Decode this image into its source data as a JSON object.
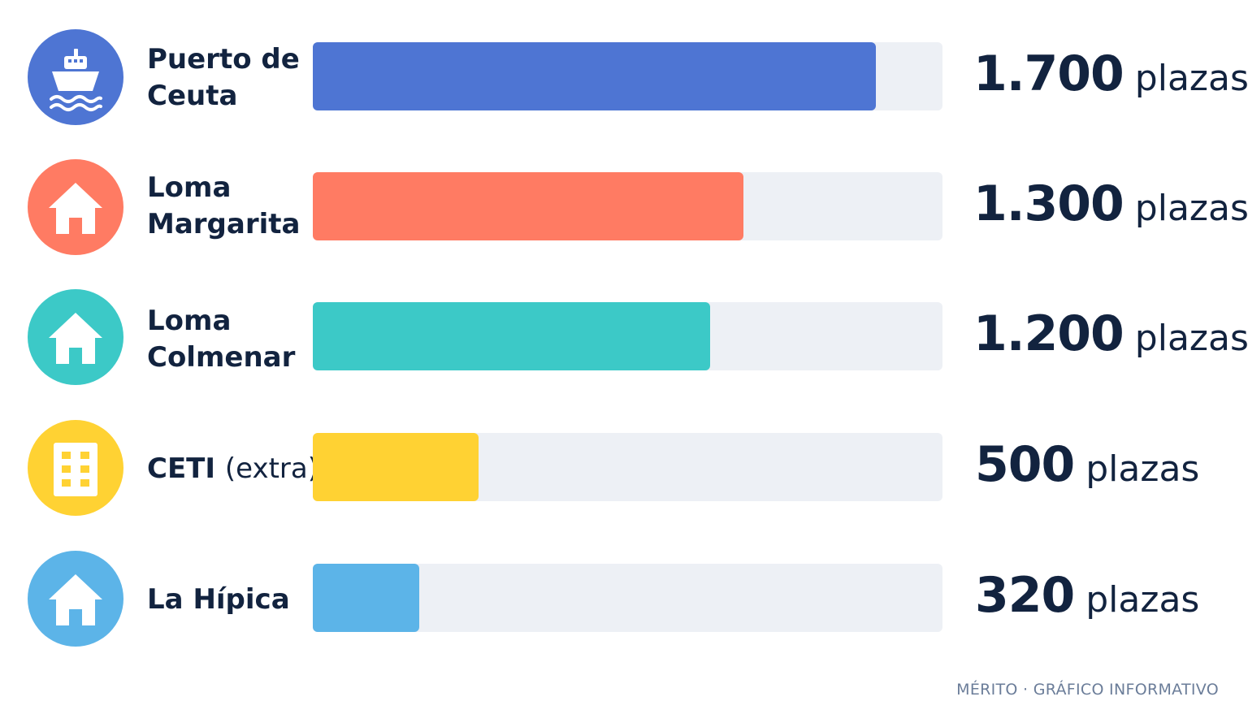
{
  "chart_data": {
    "type": "bar",
    "orientation": "horizontal",
    "unit": "plazas",
    "xlim": [
      0,
      1900
    ],
    "grid": false,
    "legend": "none",
    "categories": [
      "Puerto de Ceuta",
      "Loma Margarita",
      "Loma Colmenar",
      "CETI (extra)",
      "La Hípica"
    ],
    "values": [
      1700,
      1300,
      1200,
      500,
      320
    ],
    "value_labels": [
      "1.700",
      "1.300",
      "1.200",
      "500",
      "320"
    ],
    "colors": [
      "#4e75d3",
      "#ff7b63",
      "#3cc9c7",
      "#ffd233",
      "#5cb4e8"
    ],
    "icons": [
      "ship-icon",
      "house-icon",
      "house-icon",
      "building-icon",
      "house-icon"
    ]
  },
  "footer": {
    "credit": "MÉRITO · GRÁFICO INFORMATIVO"
  }
}
